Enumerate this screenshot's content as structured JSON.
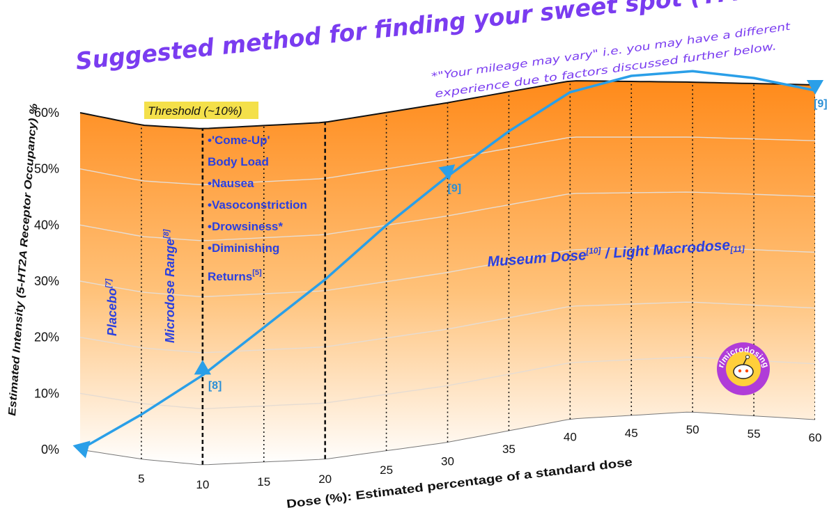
{
  "colors": {
    "fill_top": "#ff8a1a",
    "fill_bottom": "#ffffff",
    "title": "#7a3cf0",
    "annotation_text": "#2a3fe0",
    "arrow": "#2a9fe8",
    "ref_label": "#2a8fd6",
    "threshold_highlight": "#f4e04a",
    "axis_text": "#111111",
    "logo_outer": "#b03cd8",
    "logo_inner": "#ffcf3a"
  },
  "title": "Suggested method for finding your sweet spot (YMMV*)",
  "footnote": {
    "line1": "*\"Your mileage may vary\" i.e. you may have a different",
    "line2": "experience due to factors discussed further below."
  },
  "threshold_label": "Threshold (~10%)",
  "body_load_list": [
    "•'Come-Up'",
    "Body Load",
    "•Nausea",
    "•Vasoconstriction",
    "•Drowsiness*",
    "•Diminishing"
  ],
  "returns": {
    "text": "Returns",
    "sup": "[5]"
  },
  "placebo": {
    "text": "Placebo",
    "sup": "[7]"
  },
  "microdose": {
    "text": "Microdose Range",
    "sup": "[8]"
  },
  "museum": {
    "text1": "Museum Dose",
    "sup1": "[10]",
    "text2": " / Light Macrodose",
    "sup2": "[11]"
  },
  "refs": [
    "[8]",
    "[9]",
    "[9]"
  ],
  "logo": {
    "text": "r/microdosing",
    "icon": "reddit-alien-icon"
  },
  "chart_data": {
    "type": "line",
    "title": "Suggested method for finding your sweet spot (YMMV*)",
    "xlabel": "Dose (%): Estimated percentage of a standard dose",
    "ylabel": "Estimated Intensity (5-HT2A Receptor Occupancy) %",
    "xlim": [
      0,
      60
    ],
    "ylim": [
      0,
      60
    ],
    "x_ticks": [
      "5",
      "10",
      "15",
      "20",
      "25",
      "30",
      "35",
      "40",
      "45",
      "50",
      "55",
      "60"
    ],
    "y_ticks": [
      "0%",
      "10%",
      "20%",
      "30%",
      "40%",
      "50%",
      "60%"
    ],
    "grid": true,
    "legend": "none",
    "series": [
      {
        "x": [
          0,
          5,
          10,
          15,
          20,
          25,
          30,
          35,
          40,
          45,
          50,
          55,
          60
        ],
        "y": [
          0,
          8,
          16,
          24,
          32,
          40,
          47,
          53,
          58,
          61,
          62,
          61,
          59
        ]
      }
    ],
    "key_points": [
      {
        "x": 10,
        "y": 16,
        "label": "[8]"
      },
      {
        "x": 30,
        "y": 47,
        "label": "[9]"
      },
      {
        "x": 60,
        "y": 59,
        "label": "[9]"
      }
    ],
    "threshold_x": 10,
    "zone_boundary_x": 20
  }
}
